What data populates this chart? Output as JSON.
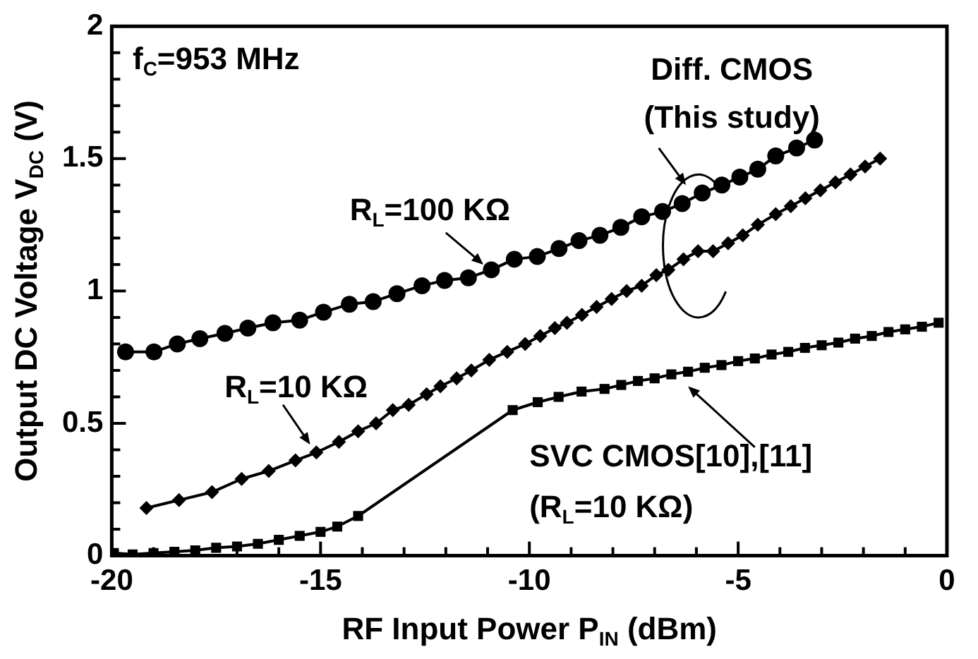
{
  "chart_data": {
    "type": "line",
    "xlabel": "RF Input Power P$_{IN}$ (dBm)",
    "ylabel": "Output DC Voltage V$_{DC}$ (V)",
    "annotations": [
      "f$_{C}$=953 MHz",
      "Diff. CMOS\n(This study)"
    ],
    "xlim": [
      -20,
      0
    ],
    "xticks": [
      -20,
      {
        "value": -19,
        "label": null
      },
      {
        "value": -18,
        "label": null
      },
      {
        "value": -17,
        "label": null
      },
      {
        "value": -16,
        "label": null
      },
      -15,
      {
        "value": -14,
        "label": null
      },
      {
        "value": -13,
        "label": null
      },
      {
        "value": -12,
        "label": null
      },
      {
        "value": -11,
        "label": null
      },
      -10,
      {
        "value": -9,
        "label": null
      },
      {
        "value": -8,
        "label": null
      },
      {
        "value": -7,
        "label": null
      },
      {
        "value": -6,
        "label": null
      },
      -5,
      {
        "value": -4,
        "label": null
      },
      {
        "value": -3,
        "label": null
      },
      {
        "value": -2,
        "label": null
      },
      {
        "value": -1,
        "label": null
      },
      0
    ],
    "ylim": [
      0,
      2
    ],
    "yticks": [
      0,
      {
        "value": 0.1,
        "label": null
      },
      {
        "value": 0.2,
        "label": null
      },
      {
        "value": 0.3,
        "label": null
      },
      {
        "value": 0.4,
        "label": null
      },
      0.5,
      {
        "value": 0.6,
        "label": null
      },
      {
        "value": 0.7,
        "label": null
      },
      {
        "value": 0.8,
        "label": null
      },
      {
        "value": 0.9,
        "label": null
      },
      1,
      {
        "value": 1.1,
        "label": null
      },
      {
        "value": 1.2,
        "label": null
      },
      {
        "value": 1.3,
        "label": null
      },
      {
        "value": 1.4,
        "label": null
      },
      1.5,
      {
        "value": 1.6,
        "label": null
      },
      {
        "value": 1.7,
        "label": null
      },
      {
        "value": 1.8,
        "label": null
      },
      {
        "value": 1.9,
        "label": null
      },
      2
    ],
    "grid": false,
    "line_style": "solid",
    "series": [
      {
        "name": "R$_{L}$=100 KΩ",
        "color": "#000000",
        "marker": "circle",
        "x": [
          -19.67,
          -18.99,
          -18.43,
          -17.89,
          -17.29,
          -16.74,
          -16.14,
          -15.5,
          -14.93,
          -14.31,
          -13.74,
          -13.17,
          -12.57,
          -12.03,
          -11.46,
          -10.91,
          -10.36,
          -9.81,
          -9.29,
          -8.81,
          -8.31,
          -7.81,
          -7.31,
          -6.81,
          -6.34,
          -5.86,
          -5.39,
          -4.96,
          -4.53,
          -4.1,
          -3.6,
          -3.17
        ],
        "values": [
          0.77,
          0.77,
          0.8,
          0.82,
          0.84,
          0.86,
          0.88,
          0.89,
          0.92,
          0.95,
          0.96,
          0.99,
          1.02,
          1.04,
          1.05,
          1.08,
          1.12,
          1.13,
          1.16,
          1.19,
          1.21,
          1.24,
          1.28,
          1.3,
          1.33,
          1.37,
          1.4,
          1.43,
          1.46,
          1.51,
          1.54,
          1.57
        ]
      },
      {
        "name": "R$_{L}$=10 KΩ",
        "color": "#000000",
        "marker": "diamond",
        "x": [
          -19.17,
          -18.39,
          -17.6,
          -16.89,
          -16.24,
          -15.6,
          -15.1,
          -14.56,
          -14.1,
          -13.67,
          -13.27,
          -12.89,
          -12.46,
          -12.13,
          -11.74,
          -11.39,
          -10.96,
          -10.53,
          -10.1,
          -9.74,
          -9.39,
          -9.1,
          -8.74,
          -8.39,
          -8.03,
          -7.67,
          -7.31,
          -6.96,
          -6.67,
          -6.31,
          -5.96,
          -5.6,
          -5.24,
          -4.89,
          -4.53,
          -4.1,
          -3.74,
          -3.39,
          -3.03,
          -2.67,
          -2.31,
          -1.96,
          -1.6
        ],
        "values": [
          0.18,
          0.21,
          0.24,
          0.29,
          0.32,
          0.36,
          0.39,
          0.43,
          0.47,
          0.5,
          0.55,
          0.57,
          0.61,
          0.64,
          0.67,
          0.7,
          0.74,
          0.77,
          0.8,
          0.83,
          0.86,
          0.88,
          0.91,
          0.94,
          0.97,
          1.0,
          1.02,
          1.06,
          1.08,
          1.12,
          1.15,
          1.15,
          1.18,
          1.21,
          1.25,
          1.29,
          1.32,
          1.35,
          1.38,
          1.41,
          1.44,
          1.47,
          1.5
        ]
      },
      {
        "name": "SVC CMOS[10],[11]\n(R$_{L}$=10 KΩ)",
        "color": "#000000",
        "marker": "square",
        "x": [
          -19.95,
          -19.5,
          -19,
          -18.5,
          -18,
          -17.5,
          -17,
          -16.5,
          -16,
          -15.5,
          -15,
          -14.6,
          -14.1,
          -10.4,
          -9.8,
          -9.3,
          -8.75,
          -8.2,
          -7.8,
          -7.4,
          -7,
          -6.6,
          -6.2,
          -5.8,
          -5.4,
          -5,
          -4.6,
          -4.2,
          -3.8,
          -3.4,
          -3,
          -2.6,
          -2.2,
          -1.8,
          -1.4,
          -1,
          -0.6,
          -0.2
        ],
        "values": [
          0.01,
          0.005,
          0.01,
          0.015,
          0.02,
          0.03,
          0.035,
          0.045,
          0.06,
          0.075,
          0.09,
          0.11,
          0.15,
          0.55,
          0.58,
          0.6,
          0.62,
          0.63,
          0.645,
          0.66,
          0.67,
          0.685,
          0.695,
          0.71,
          0.72,
          0.735,
          0.745,
          0.76,
          0.77,
          0.785,
          0.795,
          0.805,
          0.82,
          0.83,
          0.845,
          0.855,
          0.865,
          0.88
        ]
      }
    ]
  }
}
